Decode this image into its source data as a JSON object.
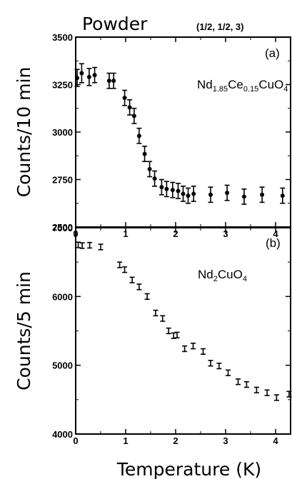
{
  "figure": {
    "title": "Powder",
    "reflection": "(1/2, 1/2, 3)",
    "xlabel": "Temperature (K)"
  },
  "chart_data": [
    {
      "type": "scatter",
      "panel_label": "(a)",
      "compound": {
        "parts": [
          "Nd",
          "1.85",
          "Ce",
          "0.15",
          "CuO",
          "4"
        ]
      },
      "ylabel": "Counts/10 min",
      "xlim": [
        0,
        4.3
      ],
      "ylim": [
        2500,
        3500
      ],
      "x_ticks": [
        0,
        1,
        2,
        3,
        4
      ],
      "y_ticks": [
        2500,
        2750,
        3000,
        3250,
        3500
      ],
      "grid": false,
      "series": [
        {
          "points": [
            {
              "x": 0.03,
              "y": 3285,
              "err": 45
            },
            {
              "x": 0.12,
              "y": 3310,
              "err": 50
            },
            {
              "x": 0.27,
              "y": 3290,
              "err": 45
            },
            {
              "x": 0.38,
              "y": 3300,
              "err": 40
            },
            {
              "x": 0.67,
              "y": 3270,
              "err": 40
            },
            {
              "x": 0.76,
              "y": 3270,
              "err": 40
            },
            {
              "x": 0.98,
              "y": 3180,
              "err": 40
            },
            {
              "x": 1.08,
              "y": 3130,
              "err": 40
            },
            {
              "x": 1.17,
              "y": 3085,
              "err": 40
            },
            {
              "x": 1.27,
              "y": 2980,
              "err": 40
            },
            {
              "x": 1.38,
              "y": 2885,
              "err": 40
            },
            {
              "x": 1.48,
              "y": 2805,
              "err": 40
            },
            {
              "x": 1.58,
              "y": 2755,
              "err": 40
            },
            {
              "x": 1.72,
              "y": 2710,
              "err": 40
            },
            {
              "x": 1.82,
              "y": 2700,
              "err": 40
            },
            {
              "x": 1.94,
              "y": 2695,
              "err": 40
            },
            {
              "x": 2.05,
              "y": 2690,
              "err": 40
            },
            {
              "x": 2.15,
              "y": 2675,
              "err": 40
            },
            {
              "x": 2.25,
              "y": 2665,
              "err": 40
            },
            {
              "x": 2.36,
              "y": 2675,
              "err": 40
            },
            {
              "x": 2.7,
              "y": 2670,
              "err": 40
            },
            {
              "x": 3.03,
              "y": 2680,
              "err": 40
            },
            {
              "x": 3.37,
              "y": 2660,
              "err": 40
            },
            {
              "x": 3.73,
              "y": 2670,
              "err": 40
            },
            {
              "x": 4.14,
              "y": 2665,
              "err": 40
            }
          ]
        }
      ]
    },
    {
      "type": "scatter",
      "panel_label": "(b)",
      "compound": {
        "parts": [
          "Nd",
          "2",
          "CuO",
          "4"
        ]
      },
      "ylabel": "Counts/5 min",
      "xlim": [
        0,
        4.3
      ],
      "ylim": [
        4000,
        7000
      ],
      "x_ticks": [
        0,
        1,
        2,
        3,
        4
      ],
      "y_ticks": [
        4000,
        5000,
        6000,
        7000
      ],
      "grid": false,
      "series": [
        {
          "points": [
            {
              "x": 0.05,
              "y": 6750,
              "err": 40
            },
            {
              "x": 0.13,
              "y": 6740,
              "err": 40
            },
            {
              "x": 0.28,
              "y": 6745,
              "err": 40
            },
            {
              "x": 0.5,
              "y": 6720,
              "err": 40
            },
            {
              "x": 0.88,
              "y": 6460,
              "err": 40
            },
            {
              "x": 0.98,
              "y": 6390,
              "err": 40
            },
            {
              "x": 1.13,
              "y": 6240,
              "err": 40
            },
            {
              "x": 1.27,
              "y": 6140,
              "err": 40
            },
            {
              "x": 1.43,
              "y": 6000,
              "err": 40
            },
            {
              "x": 1.6,
              "y": 5760,
              "err": 40
            },
            {
              "x": 1.74,
              "y": 5680,
              "err": 40
            },
            {
              "x": 1.86,
              "y": 5500,
              "err": 40
            },
            {
              "x": 1.96,
              "y": 5430,
              "err": 40
            },
            {
              "x": 2.03,
              "y": 5440,
              "err": 40
            },
            {
              "x": 2.18,
              "y": 5240,
              "err": 40
            },
            {
              "x": 2.35,
              "y": 5280,
              "err": 40
            },
            {
              "x": 2.55,
              "y": 5200,
              "err": 40
            },
            {
              "x": 2.7,
              "y": 5030,
              "err": 40
            },
            {
              "x": 2.87,
              "y": 4990,
              "err": 40
            },
            {
              "x": 3.05,
              "y": 4890,
              "err": 40
            },
            {
              "x": 3.25,
              "y": 4760,
              "err": 40
            },
            {
              "x": 3.42,
              "y": 4720,
              "err": 40
            },
            {
              "x": 3.62,
              "y": 4640,
              "err": 40
            },
            {
              "x": 3.83,
              "y": 4600,
              "err": 40
            },
            {
              "x": 4.02,
              "y": 4530,
              "err": 40
            },
            {
              "x": 4.27,
              "y": 4580,
              "err": 40
            }
          ]
        }
      ]
    }
  ]
}
